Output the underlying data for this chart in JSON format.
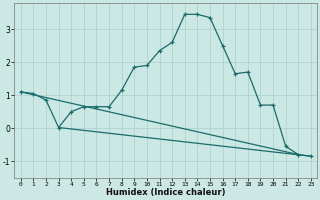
{
  "xlabel": "Humidex (Indice chaleur)",
  "bg_color": "#cce8e4",
  "line_color": "#1a6b6b",
  "grid_color": "#aacfcc",
  "ylim": [
    -1.5,
    3.8
  ],
  "xlim": [
    -0.5,
    23.5
  ],
  "yticks": [
    -1,
    0,
    1,
    2,
    3
  ],
  "xticks": [
    0,
    1,
    2,
    3,
    4,
    5,
    6,
    7,
    8,
    9,
    10,
    11,
    12,
    13,
    14,
    15,
    16,
    17,
    18,
    19,
    20,
    21,
    22,
    23
  ],
  "line1_x": [
    0,
    1,
    2,
    3,
    4,
    5,
    6,
    7,
    8,
    9,
    10,
    11,
    12,
    13,
    14,
    15,
    16,
    17,
    18,
    19,
    20,
    21,
    22,
    23
  ],
  "line1_y": [
    1.1,
    1.05,
    0.85,
    0.02,
    0.5,
    0.65,
    0.65,
    0.65,
    1.15,
    1.85,
    1.9,
    2.35,
    2.6,
    3.45,
    3.45,
    3.35,
    2.5,
    1.65,
    1.7,
    0.7,
    0.7,
    -0.55,
    -0.8,
    -0.85
  ],
  "line2_x": [
    0,
    22
  ],
  "line2_y": [
    1.1,
    -0.8
  ],
  "line3_x": [
    3,
    23
  ],
  "line3_y": [
    0.02,
    -0.85
  ]
}
